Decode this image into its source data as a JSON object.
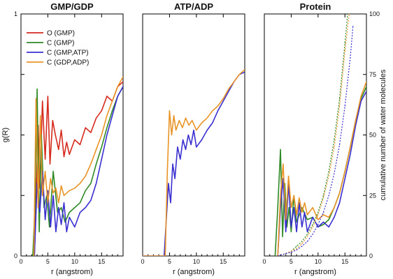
{
  "chart_data": [
    {
      "type": "line",
      "title": "GMP/GDP",
      "xlabel": "r (angstrom)",
      "ylabel": "g(R)",
      "xlim": [
        0,
        19
      ],
      "ylim": [
        0,
        1
      ],
      "xticks": [
        "0",
        "5",
        "10",
        "15"
      ],
      "yticks_left": [
        "0",
        "1"
      ],
      "legend": {
        "placement": "top-left"
      },
      "series": [
        {
          "name": "O (GMP)",
          "color": "#d62a1e",
          "x": [
            2.5,
            2.9,
            3.2,
            3.5,
            4.0,
            4.5,
            5.0,
            5.4,
            5.9,
            6.4,
            7.0,
            7.5,
            8.0,
            8.5,
            9.0,
            10.0,
            11.0,
            12.0,
            13.0,
            14.0,
            15.0,
            16.0,
            17.0,
            18.0,
            19.0
          ],
          "y": [
            0.0,
            0.3,
            0.54,
            0.28,
            0.64,
            0.4,
            0.66,
            0.38,
            0.56,
            0.5,
            0.44,
            0.52,
            0.41,
            0.47,
            0.42,
            0.48,
            0.46,
            0.53,
            0.51,
            0.57,
            0.6,
            0.66,
            0.64,
            0.7,
            0.72
          ]
        },
        {
          "name": "C (GMP)",
          "color": "#2f8a26",
          "x": [
            2.2,
            2.6,
            3.0,
            3.4,
            3.8,
            4.3,
            4.8,
            5.3,
            6.0,
            6.8,
            7.5,
            8.2,
            9.0,
            10.0,
            11.0,
            12.0,
            13.0,
            14.0,
            15.0,
            16.0,
            17.0,
            18.0,
            19.0
          ],
          "y": [
            0.0,
            0.2,
            0.69,
            0.1,
            0.5,
            0.2,
            0.25,
            0.12,
            0.35,
            0.18,
            0.2,
            0.14,
            0.18,
            0.2,
            0.22,
            0.27,
            0.3,
            0.38,
            0.45,
            0.53,
            0.6,
            0.66,
            0.7
          ]
        },
        {
          "name": "C (GMP,ATP)",
          "color": "#3a2fd0",
          "x": [
            2.5,
            3.0,
            3.5,
            4.0,
            4.5,
            5.0,
            5.5,
            6.0,
            6.5,
            7.0,
            7.5,
            8.0,
            8.5,
            9.0,
            10.0,
            11.0,
            12.0,
            13.0,
            14.0,
            15.0,
            16.0,
            17.0,
            18.0,
            19.0
          ],
          "y": [
            0.0,
            0.3,
            0.18,
            0.35,
            0.15,
            0.27,
            0.12,
            0.25,
            0.1,
            0.2,
            0.13,
            0.22,
            0.1,
            0.16,
            0.12,
            0.18,
            0.2,
            0.23,
            0.3,
            0.4,
            0.5,
            0.58,
            0.66,
            0.7
          ]
        },
        {
          "name": "C (GDP,ADP)",
          "color": "#e89426",
          "x": [
            2.4,
            2.8,
            3.2,
            3.6,
            4.0,
            4.5,
            5.0,
            5.5,
            6.0,
            6.5,
            7.0,
            7.5,
            8.0,
            9.0,
            10.0,
            11.0,
            12.0,
            13.0,
            14.0,
            15.0,
            16.0,
            17.0,
            18.0,
            19.0
          ],
          "y": [
            0.0,
            0.65,
            0.2,
            0.58,
            0.25,
            0.35,
            0.22,
            0.32,
            0.26,
            0.28,
            0.22,
            0.29,
            0.25,
            0.27,
            0.28,
            0.3,
            0.33,
            0.38,
            0.44,
            0.5,
            0.58,
            0.64,
            0.7,
            0.74
          ]
        }
      ]
    },
    {
      "type": "line",
      "title": "ATP/ADP",
      "xlabel": "r (angstrom)",
      "xlim": [
        0,
        19
      ],
      "ylim": [
        0,
        1
      ],
      "xticks": [
        "0",
        "5",
        "10",
        "15"
      ],
      "series": [
        {
          "name": "C (GMP,ATP)",
          "color": "#3a2fd0",
          "x": [
            0,
            4.0,
            4.4,
            4.8,
            5.2,
            5.6,
            6.0,
            6.5,
            7.0,
            7.5,
            8.0,
            8.5,
            9.0,
            9.5,
            10.0,
            11.0,
            12.0,
            13.0,
            14.0,
            15.0,
            16.0,
            17.0,
            18.0,
            19.0
          ],
          "y": [
            0.0,
            0.0,
            0.15,
            0.3,
            0.22,
            0.38,
            0.32,
            0.45,
            0.4,
            0.48,
            0.44,
            0.5,
            0.46,
            0.52,
            0.45,
            0.48,
            0.52,
            0.55,
            0.6,
            0.64,
            0.68,
            0.72,
            0.75,
            0.76
          ]
        },
        {
          "name": "C (GDP,ADP)",
          "color": "#e89426",
          "x": [
            0,
            4.2,
            4.6,
            5.0,
            5.4,
            5.8,
            6.2,
            6.8,
            7.4,
            8.0,
            8.6,
            9.2,
            10.0,
            11.0,
            12.0,
            13.0,
            14.0,
            15.0,
            16.0,
            17.0,
            18.0,
            19.0
          ],
          "y": [
            0.0,
            0.0,
            0.35,
            0.6,
            0.5,
            0.58,
            0.52,
            0.56,
            0.53,
            0.57,
            0.54,
            0.56,
            0.52,
            0.55,
            0.57,
            0.6,
            0.62,
            0.65,
            0.69,
            0.72,
            0.75,
            0.77
          ]
        }
      ]
    },
    {
      "type": "line",
      "title": "Protein",
      "xlabel": "r (angstrom)",
      "ylabel_right": "cumulative number of water molecules",
      "xlim": [
        0,
        19
      ],
      "ylim": [
        0,
        1
      ],
      "ylim_right": [
        0,
        100
      ],
      "xticks": [
        "0",
        "5",
        "10",
        "15"
      ],
      "yticks_right": [
        "0",
        "25",
        "50",
        "75",
        "100"
      ],
      "series": [
        {
          "name": "C (GMP)",
          "color": "#2f8a26",
          "x": [
            2.0,
            2.5,
            3.0,
            3.4,
            3.8,
            4.2,
            4.6,
            5.0,
            5.5,
            6.0,
            7.0,
            8.0,
            9.0,
            10.0,
            11.0,
            12.0,
            13.0,
            14.0,
            15.0,
            16.0,
            17.0,
            18.0,
            19.0
          ],
          "y": [
            0.0,
            0.2,
            0.44,
            0.08,
            0.3,
            0.12,
            0.2,
            0.1,
            0.25,
            0.14,
            0.2,
            0.15,
            0.16,
            0.12,
            0.13,
            0.15,
            0.2,
            0.26,
            0.35,
            0.45,
            0.56,
            0.65,
            0.7
          ]
        },
        {
          "name": "C (GMP,ATP)",
          "color": "#3a2fd0",
          "x": [
            2.5,
            3.0,
            3.5,
            4.0,
            4.5,
            5.0,
            5.5,
            6.0,
            6.5,
            7.0,
            7.5,
            8.0,
            9.0,
            10.0,
            11.0,
            12.0,
            13.0,
            14.0,
            15.0,
            16.0,
            17.0,
            18.0,
            19.0
          ],
          "y": [
            0.0,
            0.2,
            0.32,
            0.1,
            0.3,
            0.12,
            0.2,
            0.1,
            0.22,
            0.12,
            0.18,
            0.1,
            0.16,
            0.12,
            0.14,
            0.12,
            0.16,
            0.22,
            0.32,
            0.42,
            0.54,
            0.64,
            0.68
          ]
        },
        {
          "name": "C (GDP,ADP)",
          "color": "#e89426",
          "x": [
            2.5,
            3.0,
            3.5,
            4.0,
            4.5,
            5.0,
            5.5,
            6.0,
            6.5,
            7.0,
            7.5,
            8.0,
            9.0,
            10.0,
            11.0,
            12.0,
            13.0,
            14.0,
            15.0,
            16.0,
            17.0,
            18.0,
            19.0
          ],
          "y": [
            0.0,
            0.25,
            0.38,
            0.15,
            0.33,
            0.2,
            0.25,
            0.17,
            0.24,
            0.18,
            0.22,
            0.17,
            0.2,
            0.15,
            0.17,
            0.16,
            0.2,
            0.26,
            0.35,
            0.45,
            0.56,
            0.66,
            0.72
          ]
        },
        {
          "name": "cumulative (GMP)",
          "color": "#2f8a26",
          "axis": "right",
          "dashed": true,
          "x": [
            2.5,
            4,
            5,
            6,
            7,
            8,
            9,
            10,
            11,
            12,
            13,
            14,
            15,
            15.5
          ],
          "y": [
            0,
            1,
            2,
            4,
            6,
            9,
            13,
            18,
            25,
            35,
            48,
            65,
            88,
            100
          ]
        },
        {
          "name": "cumulative (GDP,ADP)",
          "color": "#e89426",
          "axis": "right",
          "dashed": true,
          "x": [
            2.5,
            4,
            5,
            6,
            7,
            8,
            9,
            10,
            11,
            12,
            13,
            14,
            15,
            15.8
          ],
          "y": [
            0,
            1,
            2,
            3,
            5,
            8,
            12,
            17,
            24,
            33,
            45,
            62,
            85,
            100
          ]
        },
        {
          "name": "cumulative (GMP,ATP)",
          "color": "#3a2fd0",
          "axis": "right",
          "dashed": true,
          "x": [
            2.5,
            4,
            5,
            6,
            7,
            8,
            9,
            10,
            11,
            12,
            13,
            14,
            15,
            16,
            16.5
          ],
          "y": [
            0,
            1,
            1.5,
            2.5,
            4,
            6,
            9,
            13,
            18,
            25,
            34,
            46,
            62,
            82,
            95
          ]
        }
      ]
    }
  ]
}
